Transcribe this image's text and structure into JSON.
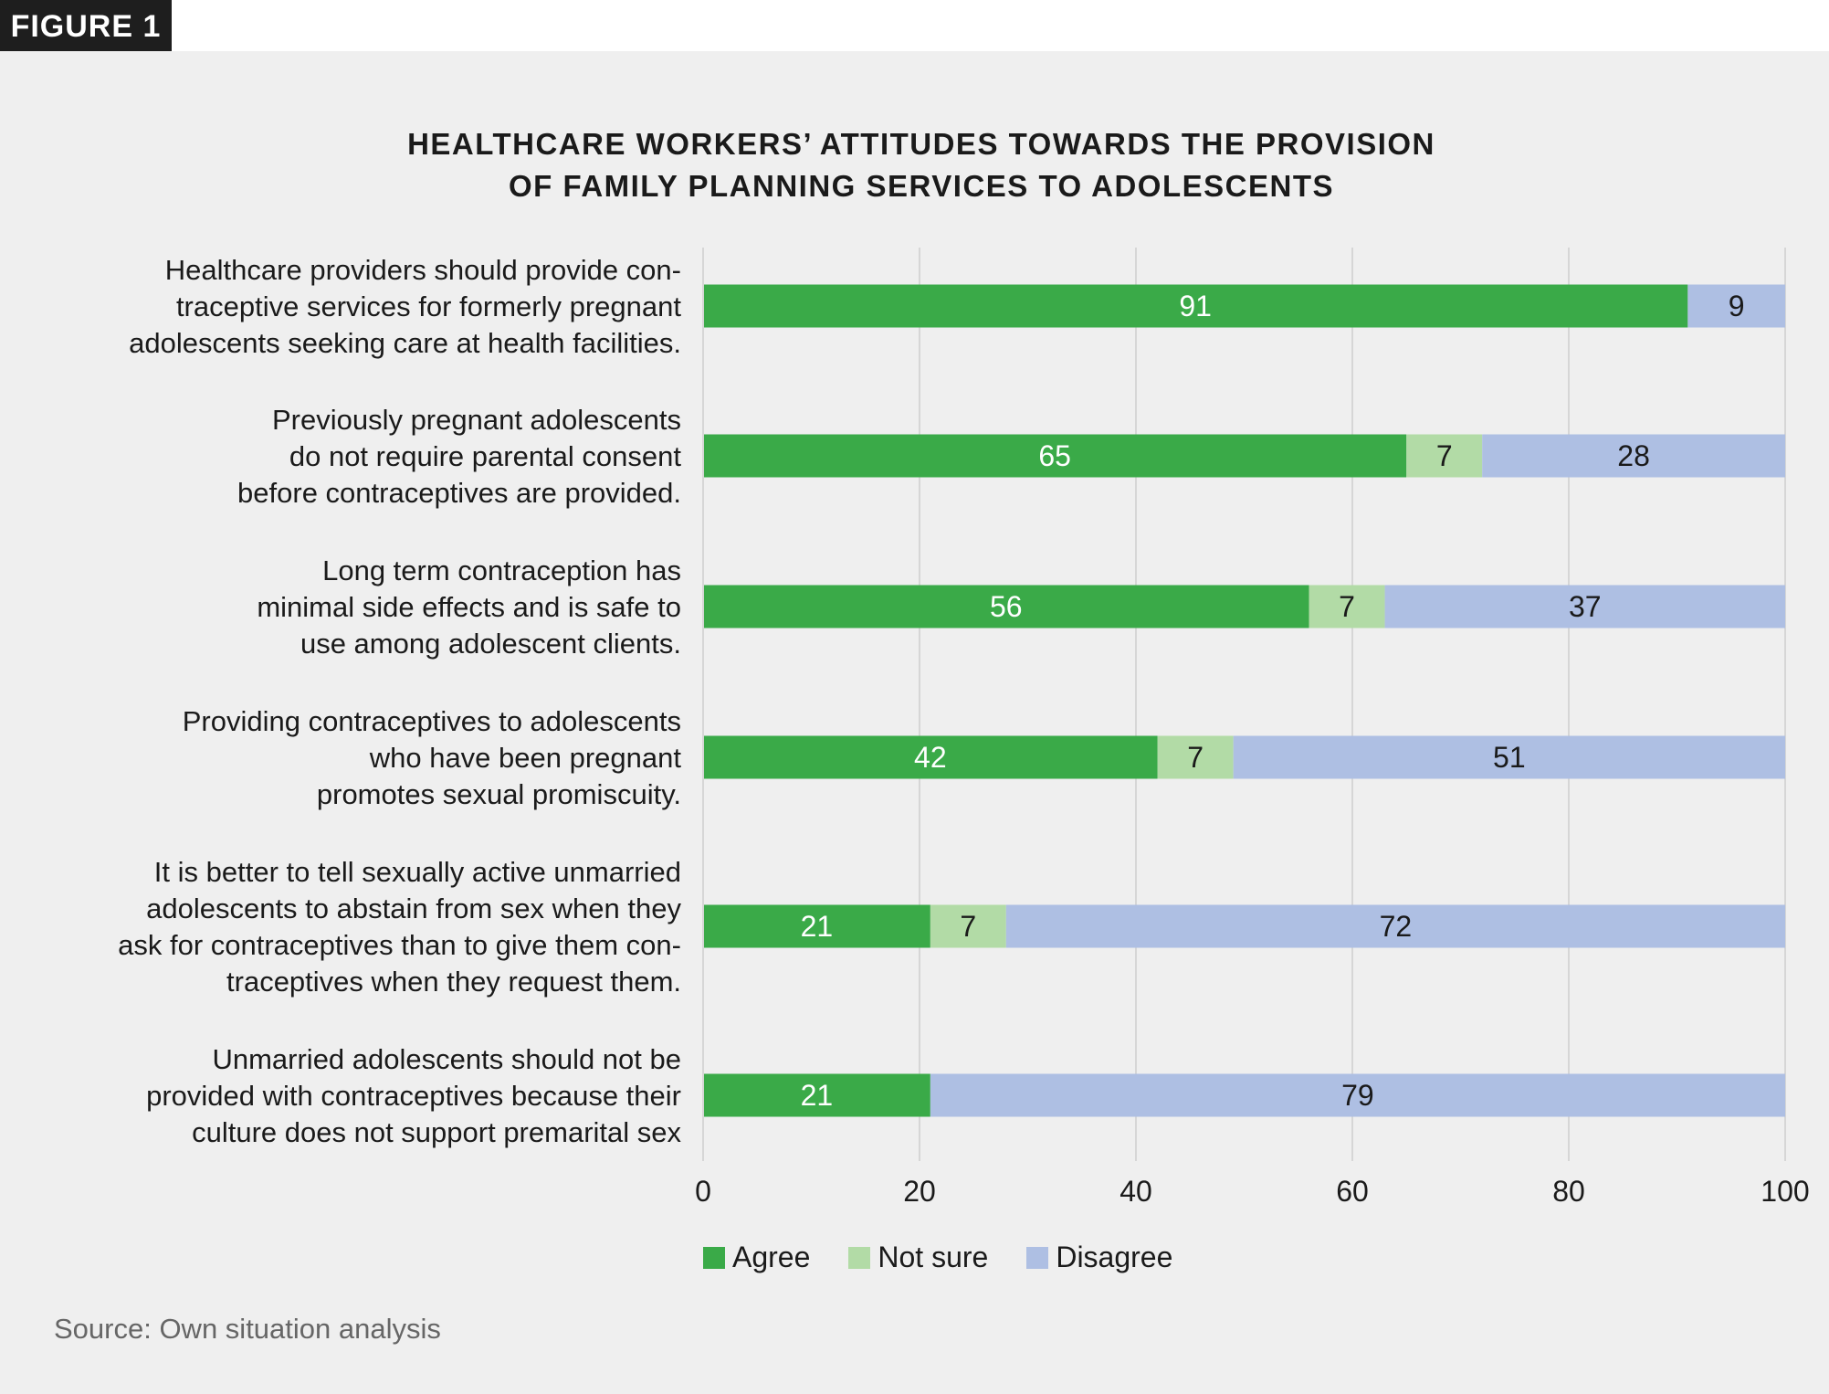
{
  "figure_tab": "FIGURE 1",
  "source": "Source: Own situation analysis",
  "colors": {
    "agree": "#3aaa48",
    "not_sure": "#b2dba6",
    "disagree": "#aebfe3",
    "background": "#efefef"
  },
  "chart_data": {
    "type": "bar",
    "orientation": "horizontal",
    "stacked": true,
    "title": [
      "HEALTHCARE WORKERS’ ATTITUDES TOWARDS THE PROVISION",
      "OF FAMILY PLANNING SERVICES TO ADOLESCENTS"
    ],
    "categories": [
      [
        "Healthcare providers should provide con-",
        "traceptive services for formerly pregnant",
        "adolescents seeking care at health facilities."
      ],
      [
        "Previously pregnant adolescents",
        "do not require parental consent",
        "before contraceptives are provided."
      ],
      [
        "Long term contraception has",
        "minimal side effects and is safe to",
        "use among adolescent clients."
      ],
      [
        "Providing contraceptives to adolescents",
        "who have been pregnant",
        "promotes sexual promiscuity."
      ],
      [
        "It is better to tell sexually active unmarried",
        "adolescents to abstain from sex when they",
        "ask for contraceptives than to give them con-",
        "traceptives when they request them."
      ],
      [
        "Unmarried adolescents should not be",
        "provided with contraceptives because their",
        "culture does not support premarital sex"
      ]
    ],
    "series": [
      {
        "name": "Agree",
        "values": [
          91,
          65,
          56,
          42,
          21,
          21
        ]
      },
      {
        "name": "Not sure",
        "values": [
          0,
          7,
          7,
          7,
          7,
          0
        ]
      },
      {
        "name": "Disagree",
        "values": [
          9,
          28,
          37,
          51,
          72,
          79
        ]
      }
    ],
    "xlim": [
      0,
      100
    ],
    "xticks": [
      "0",
      "20",
      "40",
      "60",
      "80",
      "100"
    ],
    "grid": true,
    "legend": "bottom"
  }
}
